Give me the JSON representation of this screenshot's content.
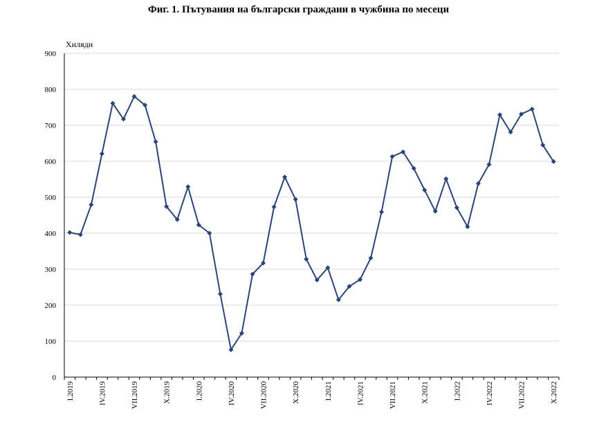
{
  "chart_data": {
    "type": "line",
    "title": "Фиг. 1. Пътувания на български граждани в чужбина по месеци",
    "ylabel": "Хиляди",
    "ylim": [
      0,
      900
    ],
    "yticks": [
      0,
      100,
      200,
      300,
      400,
      500,
      600,
      700,
      800,
      900
    ],
    "grid": true,
    "x": [
      "I.2019",
      "II.2019",
      "III.2019",
      "IV.2019",
      "V.2019",
      "VI.2019",
      "VII.2019",
      "VIII.2019",
      "IX.2019",
      "X.2019",
      "XI.2019",
      "XII.2019",
      "I.2020",
      "II.2020",
      "III.2020",
      "IV.2020",
      "V.2020",
      "VI.2020",
      "VII.2020",
      "VIII.2020",
      "IX.2020",
      "X.2020",
      "XI.2020",
      "XII.2020",
      "I.2021",
      "II.2021",
      "III.2021",
      "IV.2021",
      "V.2021",
      "VI.2021",
      "VII.2021",
      "VIII.2021",
      "IX.2021",
      "X.2021",
      "XI.2021",
      "XII.2021",
      "I.2022",
      "II.2022",
      "III.2022",
      "IV.2022",
      "V.2022",
      "VI.2022",
      "VII.2022",
      "VIII.2022",
      "IX.2022",
      "X.2022"
    ],
    "x_tick_labels": [
      {
        "index": 0,
        "label": "I.2019"
      },
      {
        "index": 3,
        "label": "IV.2019"
      },
      {
        "index": 6,
        "label": "VII.2019"
      },
      {
        "index": 9,
        "label": "X.2019"
      },
      {
        "index": 12,
        "label": "I.2020"
      },
      {
        "index": 15,
        "label": "IV.2020"
      },
      {
        "index": 18,
        "label": "VII.2020"
      },
      {
        "index": 21,
        "label": "X.2020"
      },
      {
        "index": 24,
        "label": "I.2021"
      },
      {
        "index": 27,
        "label": "IV.2021"
      },
      {
        "index": 30,
        "label": "VII.2021"
      },
      {
        "index": 33,
        "label": "X.2021"
      },
      {
        "index": 36,
        "label": "I.2022"
      },
      {
        "index": 39,
        "label": "IV.2022"
      },
      {
        "index": 42,
        "label": "VII.2022"
      },
      {
        "index": 45,
        "label": "X.2022"
      }
    ],
    "series": [
      {
        "color": "#2a4478",
        "values": [
          402,
          396,
          479,
          621,
          761,
          717,
          780,
          756,
          654,
          474,
          438,
          529,
          423,
          400,
          231,
          76,
          122,
          286,
          317,
          473,
          556,
          494,
          328,
          270,
          304,
          215,
          252,
          271,
          331,
          459,
          613,
          626,
          580,
          520,
          461,
          551,
          471,
          418,
          538,
          591,
          729,
          681,
          731,
          745,
          645,
          599
        ]
      }
    ]
  }
}
